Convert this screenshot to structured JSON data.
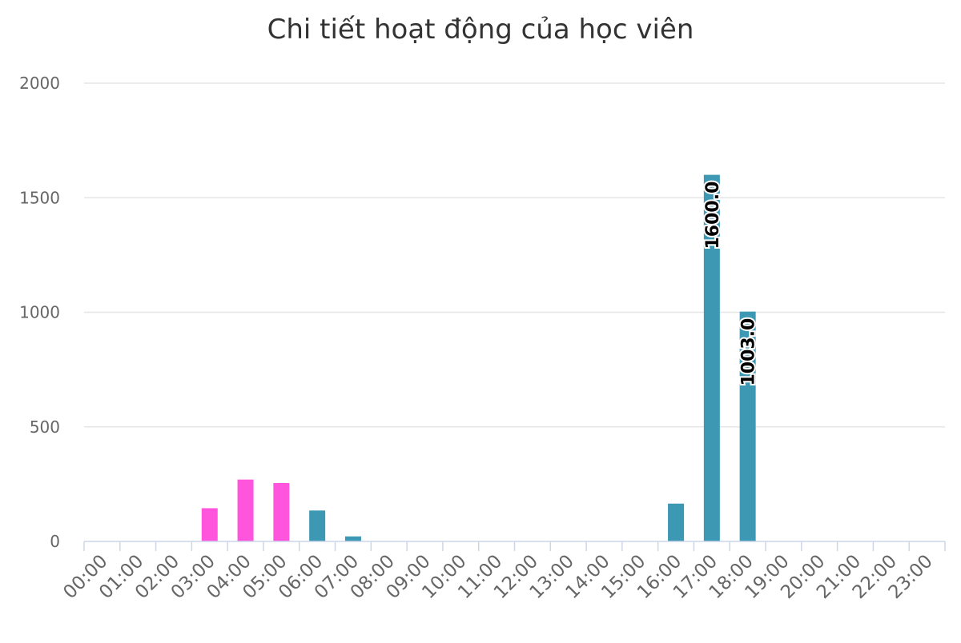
{
  "chart_data": {
    "type": "bar",
    "title": "Chi tiết hoạt động của học viên",
    "xlabel": "",
    "ylabel": "",
    "ylim": [
      0,
      2000
    ],
    "yticks": [
      0,
      500,
      1000,
      1500,
      2000
    ],
    "grid": true,
    "legend": "none",
    "categories": [
      "00:00",
      "01:00",
      "02:00",
      "03:00",
      "04:00",
      "05:00",
      "06:00",
      "07:00",
      "08:00",
      "09:00",
      "10:00",
      "11:00",
      "12:00",
      "13:00",
      "14:00",
      "15:00",
      "16:00",
      "17:00",
      "18:00",
      "19:00",
      "20:00",
      "21:00",
      "22:00",
      "23:00"
    ],
    "values": [
      0,
      0,
      0,
      145,
      270,
      255,
      135,
      22,
      0,
      0,
      0,
      0,
      0,
      0,
      0,
      0,
      165,
      1600,
      1003,
      0,
      0,
      0,
      0,
      0
    ],
    "bar_colors": [
      "#3d98b4",
      "#3d98b4",
      "#3d98b4",
      "#ff55dd",
      "#ff55dd",
      "#ff55dd",
      "#3d98b4",
      "#3d98b4",
      "#3d98b4",
      "#3d98b4",
      "#3d98b4",
      "#3d98b4",
      "#3d98b4",
      "#3d98b4",
      "#3d98b4",
      "#3d98b4",
      "#3d98b4",
      "#3d98b4",
      "#3d98b4",
      "#3d98b4",
      "#3d98b4",
      "#3d98b4",
      "#3d98b4",
      "#3d98b4"
    ],
    "data_labels": [
      {
        "index": 17,
        "text": "1600.0"
      },
      {
        "index": 18,
        "text": "1003.0"
      }
    ]
  }
}
